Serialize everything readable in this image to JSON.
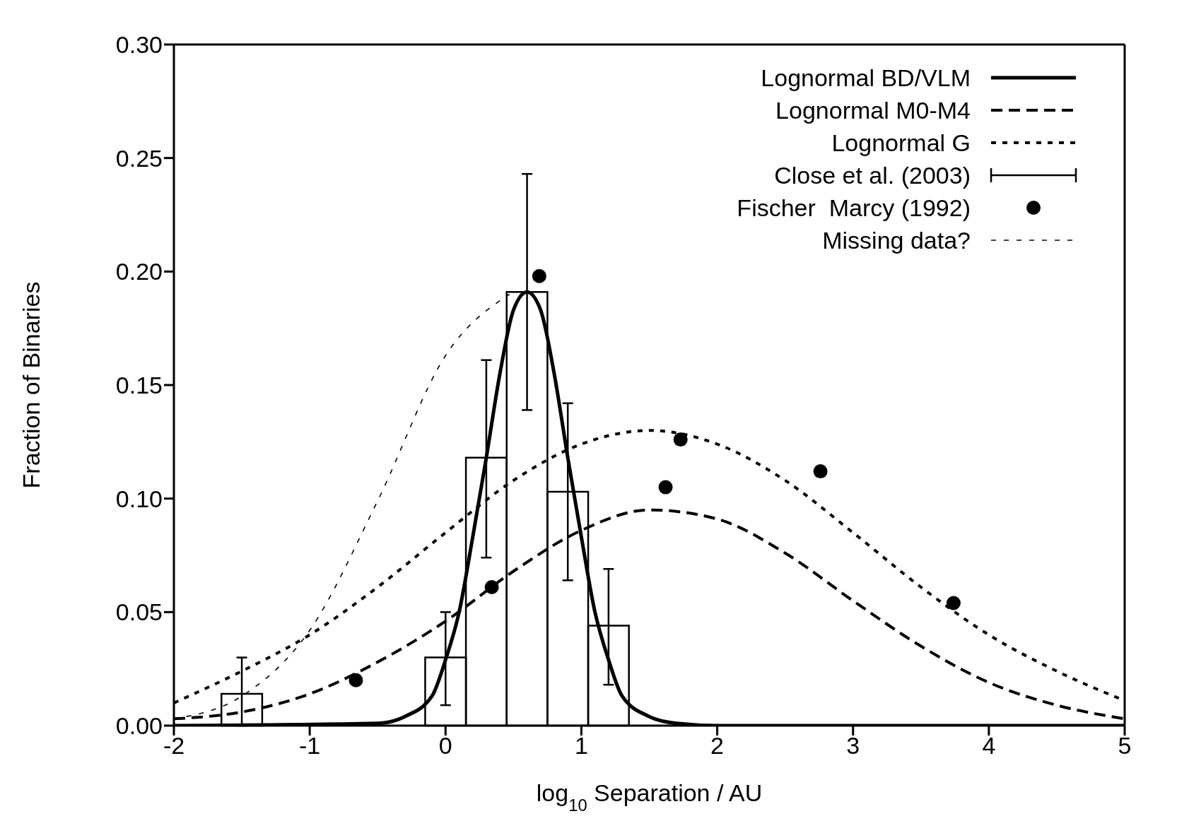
{
  "chart_data": {
    "type": "line",
    "xlabel": "log$_{10}$ Separation / AU",
    "ylabel": "Fraction of Binaries",
    "xlim": [
      -2,
      5
    ],
    "xticks": [
      -2,
      -1,
      0,
      1,
      2,
      3,
      4,
      5
    ],
    "ylim": [
      0,
      0.3
    ],
    "yticks": [
      {
        "value": 0,
        "label": "0.00"
      },
      {
        "value": 0.05,
        "label": "0.05"
      },
      {
        "value": 0.1,
        "label": "0.10"
      },
      {
        "value": 0.15,
        "label": "0.15"
      },
      {
        "value": 0.2,
        "label": "0.20"
      },
      {
        "value": 0.25,
        "label": "0.25"
      },
      {
        "value": 0.3,
        "label": "0.30"
      }
    ],
    "grid": false,
    "legend": "top right",
    "series": [
      {
        "name": "Lognormal BD/VLM",
        "color": "#000000",
        "line_style": "solid",
        "x": [
          -2,
          -0.5,
          -0.3,
          -0.1,
          0,
          0.1,
          0.2,
          0.3,
          0.4,
          0.5,
          0.6,
          0.7,
          0.8,
          0.9,
          1.0,
          1.1,
          1.2,
          1.3,
          1.5,
          1.7,
          2.0,
          5
        ],
        "values": [
          0,
          0.001,
          0.004,
          0.013,
          0.029,
          0.05,
          0.083,
          0.118,
          0.155,
          0.183,
          0.191,
          0.183,
          0.155,
          0.118,
          0.083,
          0.05,
          0.029,
          0.013,
          0.004,
          0.001,
          0,
          0
        ]
      },
      {
        "name": "Lognormal M0-M4",
        "color": "#000000",
        "line_style": "dashed",
        "x": [
          -2,
          -1.5,
          -1,
          -0.5,
          0,
          0.5,
          1,
          1.5,
          2,
          2.5,
          3,
          3.5,
          4,
          4.5,
          5
        ],
        "values": [
          0.003,
          0.006,
          0.014,
          0.028,
          0.046,
          0.068,
          0.086,
          0.095,
          0.091,
          0.076,
          0.055,
          0.035,
          0.019,
          0.009,
          0.003
        ]
      },
      {
        "name": "Lognormal G",
        "color": "#000000",
        "line_style": "dotted",
        "x": [
          -2,
          -1.5,
          -1,
          -0.5,
          0,
          0.5,
          1,
          1.5,
          2,
          2.5,
          3,
          3.5,
          4,
          4.5,
          5
        ],
        "values": [
          0.01,
          0.024,
          0.04,
          0.061,
          0.085,
          0.108,
          0.124,
          0.13,
          0.124,
          0.108,
          0.085,
          0.061,
          0.04,
          0.024,
          0.011
        ]
      },
      {
        "name": "Close et al. (2003)",
        "type": "histogram",
        "color": "#000000",
        "bins": [
          -1.65,
          -1.35,
          -1.05,
          -0.75,
          -0.45,
          -0.15,
          0.15,
          0.45,
          0.75,
          1.05,
          1.35
        ],
        "values": [
          0.014,
          0,
          0,
          0,
          0,
          0.03,
          0.118,
          0.191,
          0.103,
          0.044
        ],
        "errors": [
          [
            0,
            0.03
          ],
          null,
          null,
          null,
          null,
          [
            0.009,
            0.05
          ],
          [
            0.074,
            0.161
          ],
          [
            0.139,
            0.243
          ],
          [
            0.064,
            0.142
          ],
          [
            0.018,
            0.069
          ]
        ]
      },
      {
        "name": "Fischer  Marcy (1992)",
        "type": "scatter",
        "color": "#000000",
        "marker": "circle",
        "x": [
          -0.66,
          0.34,
          0.69,
          1.62,
          1.73,
          2.76,
          3.74
        ],
        "values": [
          0.02,
          0.061,
          0.198,
          0.105,
          0.126,
          0.112,
          0.054
        ]
      },
      {
        "name": "Missing data?",
        "color": "#000000",
        "line_style": "dashed",
        "x": [
          -2,
          -1.5,
          -1,
          -0.5,
          0,
          0.47
        ],
        "values": [
          0.003,
          0.013,
          0.042,
          0.099,
          0.163,
          0.19
        ]
      }
    ]
  }
}
